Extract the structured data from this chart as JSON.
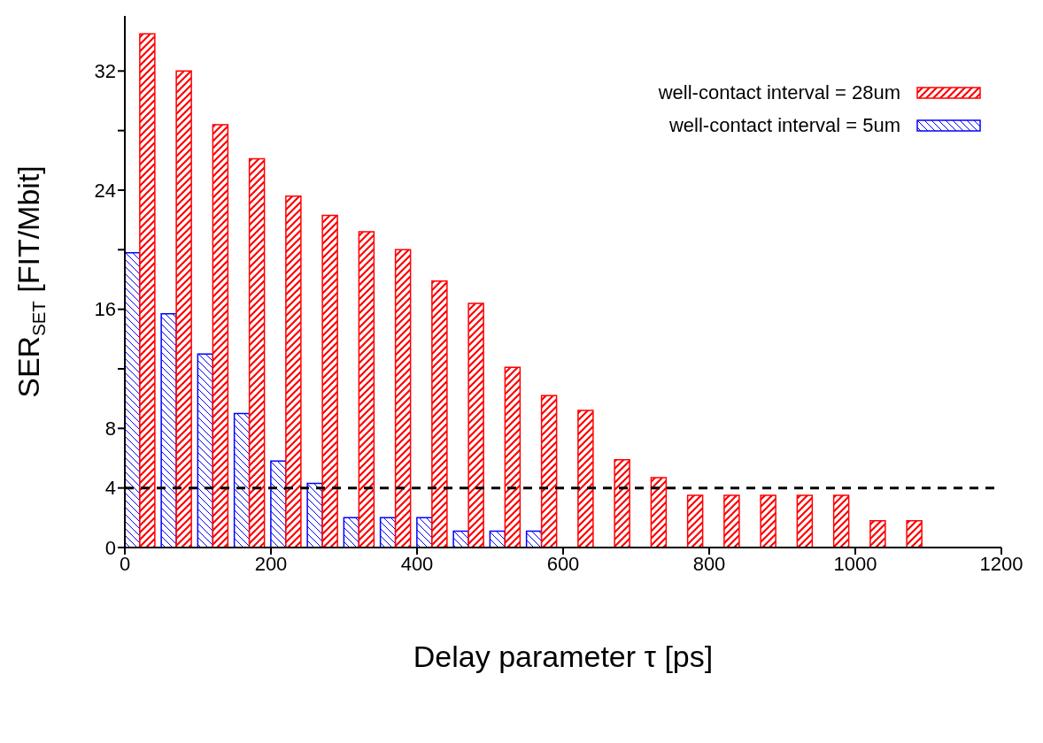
{
  "chart_data": {
    "type": "bar",
    "xlabel": "Delay parameter τ [ps]",
    "ylabel": "SER$_{SET}$ [FIT/Mbit]",
    "x": [
      20,
      70,
      120,
      170,
      220,
      270,
      320,
      370,
      420,
      470,
      520,
      570,
      620,
      670,
      720,
      770,
      820,
      870,
      920,
      970,
      1020,
      1070
    ],
    "series": [
      {
        "name": "well-contact interval = 28um",
        "color": "#ff0000",
        "values": [
          34.5,
          32,
          28.4,
          26.1,
          23.6,
          22.3,
          21.2,
          20,
          17.9,
          16.4,
          12.1,
          10.2,
          9.2,
          5.9,
          4.7,
          3.5,
          3.5,
          3.5,
          3.5,
          3.5,
          1.8,
          1.8
        ]
      },
      {
        "name": "well-contact interval = 5um",
        "color": "#0000ff",
        "values": [
          19.8,
          15.7,
          13,
          9,
          5.8,
          4.3,
          2,
          2,
          2,
          1.1,
          1.1,
          1.1,
          null,
          null,
          null,
          null,
          null,
          null,
          null,
          null,
          null,
          null
        ]
      }
    ],
    "xlim": [
      0,
      1200
    ],
    "xticks": [
      0,
      200,
      400,
      600,
      800,
      1000,
      1200
    ],
    "ylim": [
      0,
      35.7
    ],
    "yticks": [
      0,
      4,
      8,
      {
        "value": 12,
        "label": null
      },
      16,
      {
        "value": 20,
        "label": null
      },
      24,
      {
        "value": 28,
        "label": null
      },
      32
    ],
    "ref_lines": [
      {
        "axis": "y",
        "value": 4,
        "color": "#000000",
        "line_style": "dashed"
      }
    ],
    "legend": "top right",
    "grid": false
  }
}
